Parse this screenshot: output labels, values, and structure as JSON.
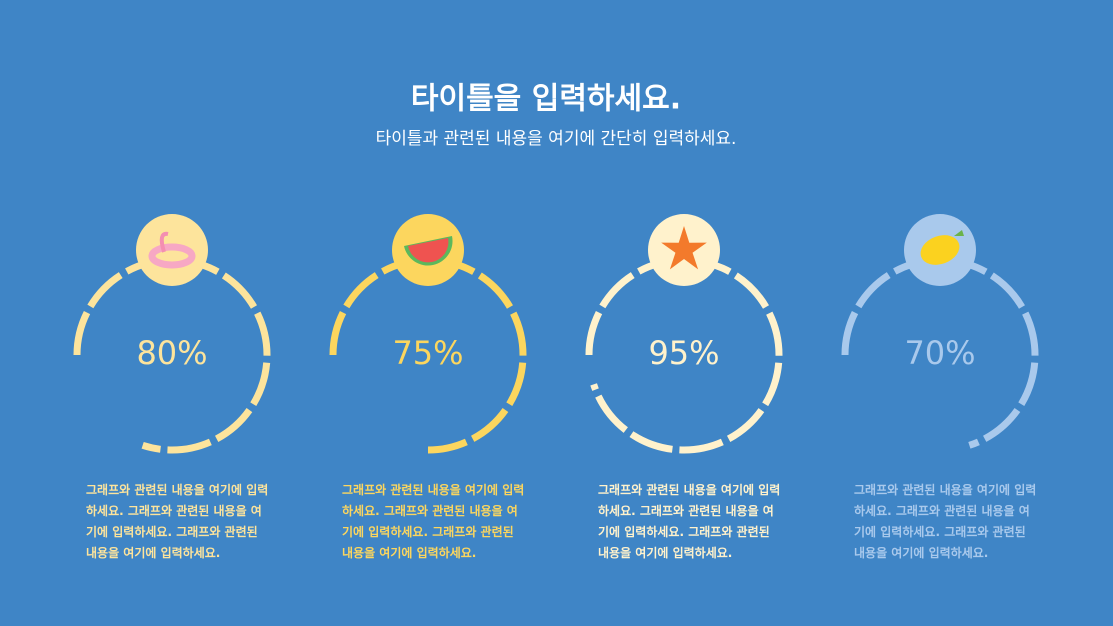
{
  "header": {
    "title": "타이틀을 입력하세요.",
    "subtitle": "타이틀과 관련된 내용을 여기에 간단히 입력하세요."
  },
  "items": [
    {
      "value": 80,
      "label": "80%",
      "color": "#fde49c",
      "text": "그래프와 관련된 내용을 여기에 입력하세요. 그래프와 관련된 내용을 여기에 입력하세요. 그래프와 관련된 내용을 여기에 입력하세요."
    },
    {
      "value": 75,
      "label": "75%",
      "color": "#fcd65e",
      "text": "그래프와 관련된 내용을 여기에 입력하세요. 그래프와 관련된 내용을 여기에 입력하세요. 그래프와 관련된 내용을 여기에 입력하세요."
    },
    {
      "value": 95,
      "label": "95%",
      "color": "#fff2cc",
      "text": "그래프와 관련된 내용을 여기에 입력하세요. 그래프와 관련된 내용을 여기에 입력하세요. 그래프와 관련된 내용을 여기에 입력하세요."
    },
    {
      "value": 70,
      "label": "70%",
      "color": "#a9c9ec",
      "text": "그래프와 관련된 내용을 여기에 입력하세요. 그래프와 관련된 내용을 여기에 입력하세요. 그래프와 관련된 내용을 여기에 입력하세요."
    }
  ]
}
